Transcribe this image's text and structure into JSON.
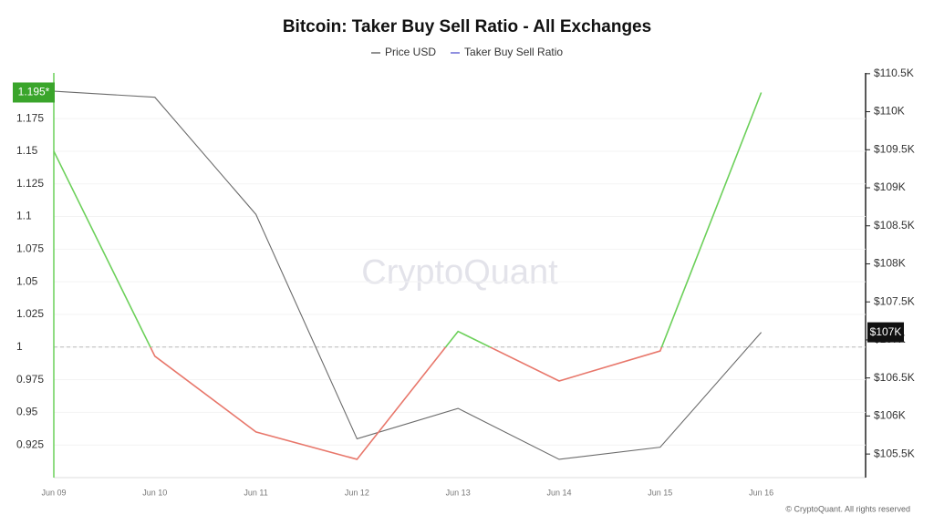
{
  "chart_data": {
    "type": "line",
    "title": "Bitcoin: Taker Buy Sell Ratio - All Exchanges",
    "watermark": "CryptoQuant",
    "footer": "© CryptoQuant. All rights reserved",
    "categories": [
      "Jun 09",
      "Jun 10",
      "Jun 11",
      "Jun 12",
      "Jun 13",
      "Jun 14",
      "Jun 15",
      "Jun 16"
    ],
    "series": [
      {
        "name": "Price USD",
        "color": "#6b6b6b",
        "axis": "y2",
        "values": [
          110270,
          110190,
          108650,
          105700,
          106100,
          105430,
          105590,
          107100
        ],
        "current_label": "$107K"
      },
      {
        "name": "Taker Buy Sell Ratio",
        "color": "#6b6bd6",
        "color_above": "#6cd05a",
        "color_below": "#e8776b",
        "values": [
          1.15,
          0.993,
          0.935,
          0.914,
          1.012,
          0.974,
          0.997,
          1.195
        ],
        "current_label": "1.195*"
      }
    ],
    "reference_line": 1,
    "ylim": [
      0.9,
      1.21
    ],
    "yticks": [
      0.925,
      0.95,
      0.975,
      1,
      1.025,
      1.05,
      1.075,
      1.1,
      1.125,
      1.15,
      1.175
    ],
    "y2lim": [
      105190,
      110510
    ],
    "y2ticks": [
      {
        "value": 105500,
        "label": "$105.5K"
      },
      {
        "value": 106000,
        "label": "$106K"
      },
      {
        "value": 106500,
        "label": "$106.5K"
      },
      {
        "value": 107000,
        "label": "$107K"
      },
      {
        "value": 107500,
        "label": "$107.5K"
      },
      {
        "value": 108000,
        "label": "$108K"
      },
      {
        "value": 108500,
        "label": "$108.5K"
      },
      {
        "value": 109000,
        "label": "$109K"
      },
      {
        "value": 109500,
        "label": "$109.5K"
      },
      {
        "value": 110000,
        "label": "$110K"
      },
      {
        "value": 110500,
        "label": "$110.5K"
      }
    ],
    "grid": true
  }
}
